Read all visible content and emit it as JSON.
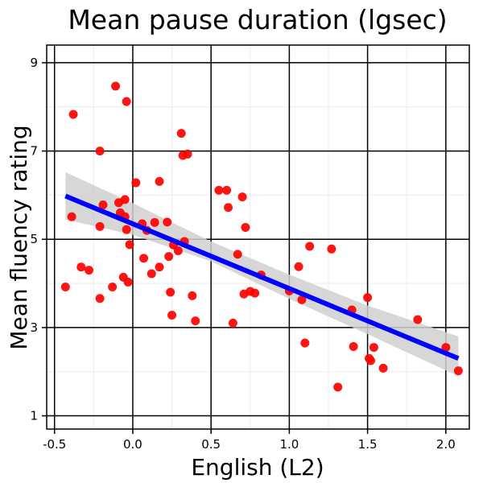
{
  "chart_data": {
    "type": "scatter",
    "title": "Mean pause duration (lgsec)",
    "xlabel": "English (L2)",
    "ylabel": "Mean fluency rating",
    "xlim": [
      -0.55,
      2.15
    ],
    "ylim": [
      0.7,
      9.4
    ],
    "xticks": [
      -0.5,
      0.0,
      0.5,
      1.0,
      1.5,
      2.0
    ],
    "xtick_labels": [
      "-0.5",
      "0.0",
      "0.5",
      "1.0",
      "1.5",
      "2.0"
    ],
    "yticks": [
      1,
      3,
      5,
      7,
      9
    ],
    "ytick_labels": [
      "1",
      "3",
      "5",
      "7",
      "9"
    ],
    "grid": true,
    "point_color": "#ff0000",
    "fit_color": "#0000ff",
    "ribbon_color": "#d0d0d0",
    "points": [
      {
        "x": -0.43,
        "y": 3.92
      },
      {
        "x": -0.39,
        "y": 5.51
      },
      {
        "x": -0.38,
        "y": 7.83
      },
      {
        "x": -0.33,
        "y": 4.37
      },
      {
        "x": -0.28,
        "y": 4.3
      },
      {
        "x": -0.21,
        "y": 7.0
      },
      {
        "x": -0.21,
        "y": 5.29
      },
      {
        "x": -0.21,
        "y": 3.66
      },
      {
        "x": -0.19,
        "y": 5.78
      },
      {
        "x": -0.13,
        "y": 3.92
      },
      {
        "x": -0.11,
        "y": 8.47
      },
      {
        "x": -0.09,
        "y": 5.83
      },
      {
        "x": -0.08,
        "y": 5.6
      },
      {
        "x": -0.06,
        "y": 4.14
      },
      {
        "x": -0.05,
        "y": 5.9
      },
      {
        "x": -0.05,
        "y": 5.51
      },
      {
        "x": -0.04,
        "y": 8.12
      },
      {
        "x": -0.04,
        "y": 5.22
      },
      {
        "x": -0.03,
        "y": 4.03
      },
      {
        "x": -0.02,
        "y": 4.88
      },
      {
        "x": 0.02,
        "y": 6.28
      },
      {
        "x": 0.06,
        "y": 5.35
      },
      {
        "x": 0.07,
        "y": 4.57
      },
      {
        "x": 0.09,
        "y": 5.2
      },
      {
        "x": 0.12,
        "y": 4.22
      },
      {
        "x": 0.14,
        "y": 5.38
      },
      {
        "x": 0.17,
        "y": 6.31
      },
      {
        "x": 0.17,
        "y": 4.37
      },
      {
        "x": 0.22,
        "y": 5.39
      },
      {
        "x": 0.23,
        "y": 4.61
      },
      {
        "x": 0.24,
        "y": 3.8
      },
      {
        "x": 0.25,
        "y": 3.28
      },
      {
        "x": 0.26,
        "y": 4.87
      },
      {
        "x": 0.29,
        "y": 4.74
      },
      {
        "x": 0.31,
        "y": 7.4
      },
      {
        "x": 0.32,
        "y": 6.9
      },
      {
        "x": 0.33,
        "y": 4.95
      },
      {
        "x": 0.35,
        "y": 6.93
      },
      {
        "x": 0.38,
        "y": 3.72
      },
      {
        "x": 0.4,
        "y": 3.15
      },
      {
        "x": 0.55,
        "y": 6.11
      },
      {
        "x": 0.6,
        "y": 6.11
      },
      {
        "x": 0.61,
        "y": 5.72
      },
      {
        "x": 0.64,
        "y": 3.1
      },
      {
        "x": 0.67,
        "y": 4.66
      },
      {
        "x": 0.7,
        "y": 5.96
      },
      {
        "x": 0.71,
        "y": 3.76
      },
      {
        "x": 0.72,
        "y": 5.27
      },
      {
        "x": 0.75,
        "y": 3.82
      },
      {
        "x": 0.78,
        "y": 3.78
      },
      {
        "x": 0.82,
        "y": 4.19
      },
      {
        "x": 1.0,
        "y": 3.83
      },
      {
        "x": 1.06,
        "y": 4.38
      },
      {
        "x": 1.08,
        "y": 3.63
      },
      {
        "x": 1.1,
        "y": 2.65
      },
      {
        "x": 1.13,
        "y": 4.84
      },
      {
        "x": 1.27,
        "y": 4.78
      },
      {
        "x": 1.31,
        "y": 1.65
      },
      {
        "x": 1.4,
        "y": 3.4
      },
      {
        "x": 1.41,
        "y": 2.57
      },
      {
        "x": 1.5,
        "y": 3.68
      },
      {
        "x": 1.51,
        "y": 2.3
      },
      {
        "x": 1.52,
        "y": 2.25
      },
      {
        "x": 1.54,
        "y": 2.55
      },
      {
        "x": 1.6,
        "y": 2.08
      },
      {
        "x": 1.82,
        "y": 3.18
      },
      {
        "x": 2.0,
        "y": 2.55
      },
      {
        "x": 2.08,
        "y": 2.02
      }
    ],
    "fit_line": {
      "x": [
        -0.43,
        2.08
      ],
      "y": [
        5.98,
        2.3
      ]
    },
    "confidence_band": {
      "x": [
        -0.43,
        0.0,
        0.5,
        1.0,
        1.5,
        2.08
      ],
      "lower": [
        5.45,
        5.1,
        4.5,
        3.65,
        2.85,
        1.9
      ],
      "upper": [
        6.52,
        5.82,
        4.95,
        4.2,
        3.5,
        2.8
      ]
    }
  }
}
